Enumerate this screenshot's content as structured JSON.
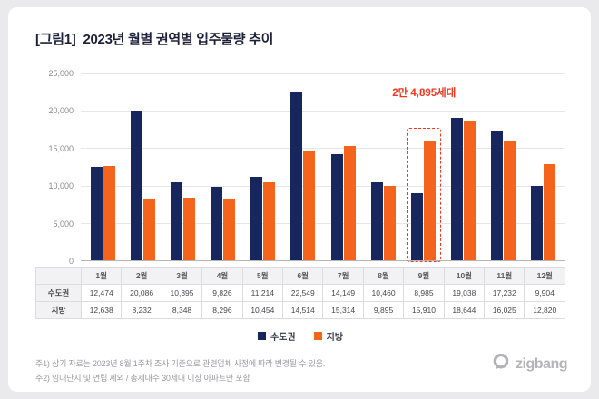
{
  "header": {
    "figure_label": "[그림1]",
    "title": "2023년 월별 권역별 입주물량 추이"
  },
  "annotation": {
    "label": "2만 4,895세대",
    "highlight_month": "9월",
    "color": "#f1361d"
  },
  "footnotes": [
    "주1) 상기 자료는 2023년 8월 1주차 조사 기준으로 관련업체 사정에 따라 변경될 수 있음.",
    "주2) 임대단지 및 연립 제외 / 총세대수 30세대 이상 아파트만 포함"
  ],
  "logo_text": "zigbang",
  "colors": {
    "capital_region": "#17265d",
    "provinces": "#f4641d",
    "highlight_red": "#f1361d"
  },
  "chart_data": {
    "type": "bar",
    "title": "2023년 월별 권역별 입주물량 추이",
    "categories": [
      "1월",
      "2월",
      "3월",
      "4월",
      "5월",
      "6월",
      "7월",
      "8월",
      "9월",
      "10월",
      "11월",
      "12월"
    ],
    "series": [
      {
        "name": "수도권",
        "color": "#17265d",
        "values": [
          12474,
          20086,
          10395,
          9826,
          11214,
          22549,
          14149,
          10460,
          8985,
          19038,
          17232,
          9904
        ]
      },
      {
        "name": "지방",
        "color": "#f4641d",
        "values": [
          12638,
          8232,
          8348,
          8296,
          10454,
          14514,
          15314,
          9895,
          15910,
          18644,
          16025,
          12820
        ]
      }
    ],
    "xlabel": "",
    "ylabel": "",
    "ylim": [
      0,
      25000
    ],
    "yticks": [
      "25,000",
      "20,000",
      "15,000",
      "10,000",
      "5,000",
      "0"
    ],
    "grid": true,
    "legend_position": "bottom",
    "annotation_total_september": 24895
  }
}
